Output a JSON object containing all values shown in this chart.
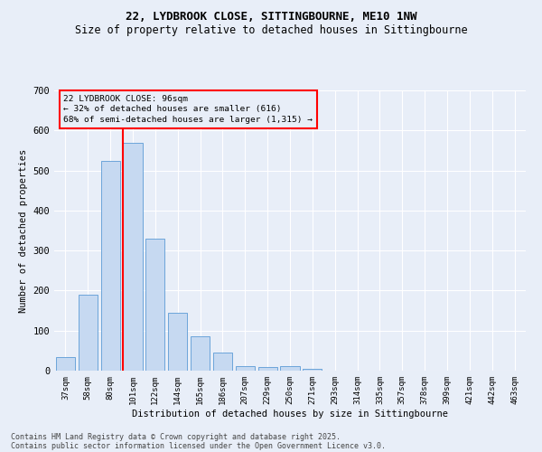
{
  "title1": "22, LYDBROOK CLOSE, SITTINGBOURNE, ME10 1NW",
  "title2": "Size of property relative to detached houses in Sittingbourne",
  "xlabel": "Distribution of detached houses by size in Sittingbourne",
  "ylabel": "Number of detached properties",
  "categories": [
    "37sqm",
    "58sqm",
    "80sqm",
    "101sqm",
    "122sqm",
    "144sqm",
    "165sqm",
    "186sqm",
    "207sqm",
    "229sqm",
    "250sqm",
    "271sqm",
    "293sqm",
    "314sqm",
    "335sqm",
    "357sqm",
    "378sqm",
    "399sqm",
    "421sqm",
    "442sqm",
    "463sqm"
  ],
  "values": [
    35,
    190,
    525,
    570,
    330,
    145,
    85,
    45,
    12,
    10,
    12,
    5,
    0,
    0,
    0,
    0,
    0,
    0,
    0,
    0,
    0
  ],
  "bar_color": "#c6d9f1",
  "bar_edge_color": "#5b9bd5",
  "vline_color": "red",
  "vline_x_index": 3,
  "annotation_line1": "22 LYDBROOK CLOSE: 96sqm",
  "annotation_line2": "← 32% of detached houses are smaller (616)",
  "annotation_line3": "68% of semi-detached houses are larger (1,315) →",
  "annotation_box_color": "red",
  "ylim": [
    0,
    700
  ],
  "yticks": [
    0,
    100,
    200,
    300,
    400,
    500,
    600,
    700
  ],
  "footer1": "Contains HM Land Registry data © Crown copyright and database right 2025.",
  "footer2": "Contains public sector information licensed under the Open Government Licence v3.0.",
  "bg_color": "#e8eef8",
  "grid_color": "#ffffff",
  "title1_fontsize": 9,
  "title2_fontsize": 8.5,
  "bar_width": 0.85
}
